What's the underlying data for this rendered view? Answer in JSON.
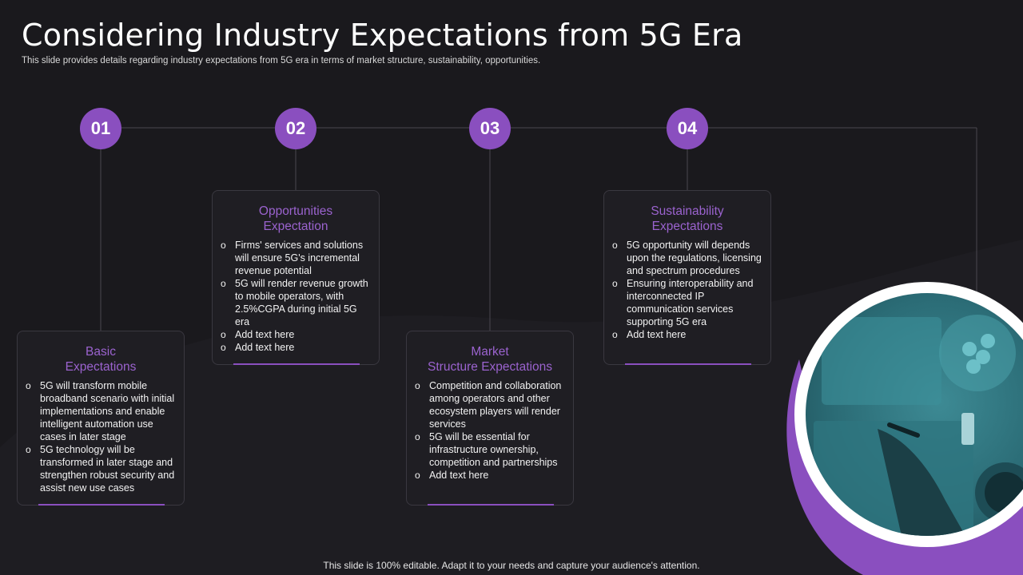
{
  "title": "Considering Industry Expectations from 5G Era",
  "subtitle": "This slide provides details regarding industry expectations from 5G era in terms of market structure, sustainability, opportunities.",
  "steps": [
    {
      "number": "01",
      "heading_lines": [
        "Basic",
        "Expectations"
      ],
      "bullets": [
        "5G will transform mobile broadband  scenario with initial implementations and enable intelligent automation use cases in later stage",
        "5G technology will be transformed  in later stage and strengthen robust security and assist new use cases"
      ]
    },
    {
      "number": "02",
      "heading_lines": [
        "Opportunities",
        "Expectation"
      ],
      "bullets": [
        "Firms' services and solutions will ensure 5G's incremental revenue  potential",
        "5G will render revenue growth to mobile operators, with 2.5%CGPA during initial 5G era",
        "Add text here",
        "Add text here"
      ]
    },
    {
      "number": "03",
      "heading_lines": [
        "Market",
        "Structure Expectations"
      ],
      "bullets": [
        "Competition and collaboration among operators and other ecosystem players will render services",
        "5G will be essential for infrastructure ownership, competition and partnerships",
        "Add text here"
      ]
    },
    {
      "number": "04",
      "heading_lines": [
        "Sustainability",
        "Expectations"
      ],
      "bullets": [
        "5G opportunity will depends upon the regulations, licensing and spectrum procedures",
        "Ensuring interoperability and interconnected IP communication services supporting 5G era",
        "Add text here"
      ]
    }
  ],
  "footer": "This slide is 100% editable. Adapt it to your needs and capture your audience's attention.",
  "colors": {
    "accent": "#8a4fbf",
    "heading": "#9b63cf",
    "background": "#1a191d"
  }
}
